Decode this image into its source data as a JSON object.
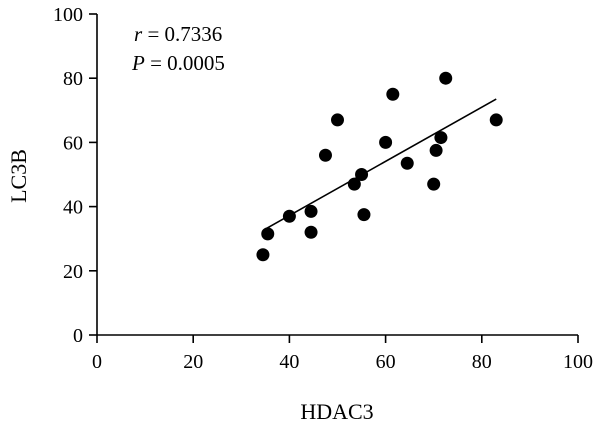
{
  "chart_data": {
    "type": "scatter",
    "xlabel": "HDAC3",
    "ylabel": "LC3B",
    "xlim": [
      0,
      100
    ],
    "ylim": [
      0,
      100
    ],
    "xticks": [
      0,
      20,
      40,
      60,
      80,
      100
    ],
    "yticks": [
      0,
      20,
      40,
      60,
      80,
      100
    ],
    "grid": false,
    "points": [
      {
        "x": 34.5,
        "y": 25
      },
      {
        "x": 35.5,
        "y": 31.5
      },
      {
        "x": 40,
        "y": 37
      },
      {
        "x": 44.5,
        "y": 32
      },
      {
        "x": 44.5,
        "y": 38.5
      },
      {
        "x": 47.5,
        "y": 56
      },
      {
        "x": 50,
        "y": 67
      },
      {
        "x": 53.5,
        "y": 47
      },
      {
        "x": 55,
        "y": 50
      },
      {
        "x": 55.5,
        "y": 37.5
      },
      {
        "x": 60,
        "y": 60
      },
      {
        "x": 61.5,
        "y": 75
      },
      {
        "x": 64.5,
        "y": 53.5
      },
      {
        "x": 70,
        "y": 47
      },
      {
        "x": 70.5,
        "y": 57.5
      },
      {
        "x": 71.5,
        "y": 61.5
      },
      {
        "x": 72.5,
        "y": 80
      },
      {
        "x": 83,
        "y": 67
      }
    ],
    "trendline": {
      "x": [
        35,
        83
      ],
      "y": [
        33,
        73.5
      ]
    },
    "annotations": {
      "r_symbol": "r",
      "r_value": " = 0.7336",
      "p_symbol": "P",
      "p_value": " = 0.0005"
    }
  }
}
